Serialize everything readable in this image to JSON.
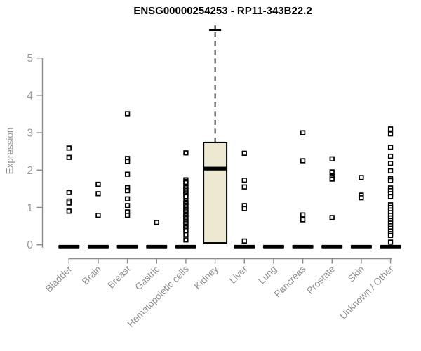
{
  "chart_data": {
    "type": "box",
    "title": "ENSG00000254253 - RP11-343B22.2",
    "ylabel": "Expression",
    "xlabel": "",
    "ylim": [
      0,
      5.8
    ],
    "yticks": [
      0,
      1,
      2,
      3,
      4,
      5
    ],
    "grid": false,
    "legend": "none",
    "marker_style": "open-square",
    "categories": [
      "Bladder",
      "Brain",
      "Breast",
      "Gastric",
      "Hematopoietic cells",
      "Kidney",
      "Liver",
      "Lung",
      "Pancreas",
      "Prostate",
      "Skin",
      "Unknown / Other"
    ],
    "groups": [
      {
        "category": "Bladder",
        "median": 0,
        "outliers": [
          2.59,
          2.34,
          1.4,
          1.17,
          1.12,
          0.9
        ]
      },
      {
        "category": "Brain",
        "median": 0,
        "outliers": [
          1.62,
          1.37,
          0.79
        ]
      },
      {
        "category": "Breast",
        "median": 0,
        "outliers": [
          3.51,
          2.31,
          2.23,
          1.89,
          1.53,
          1.45,
          1.23,
          1.05,
          0.88,
          0.79
        ]
      },
      {
        "category": "Gastric",
        "median": 0,
        "outliers": [
          0.6
        ]
      },
      {
        "category": "Hematopoietic cells",
        "median": 0,
        "outliers": [
          2.46,
          1.74,
          1.7,
          1.66,
          1.57,
          1.53,
          1.49,
          1.45,
          1.41,
          1.37,
          1.33,
          1.29,
          1.18,
          1.14,
          1.1,
          1.06,
          1.02,
          0.98,
          0.94,
          0.9,
          0.86,
          0.82,
          0.78,
          0.74,
          0.7,
          0.66,
          0.62,
          0.58,
          0.54,
          0.5,
          0.46,
          0.42,
          0.38,
          0.27,
          0.13
        ]
      },
      {
        "category": "Kidney",
        "box": {
          "q1": 0.05,
          "median": 2.04,
          "q3": 2.74,
          "whisker_high": 5.75,
          "whisker_low": 0.05
        },
        "outliers": []
      },
      {
        "category": "Liver",
        "median": 0,
        "outliers": [
          2.45,
          1.73,
          1.55,
          1.05,
          0.97,
          0.1
        ]
      },
      {
        "category": "Lung",
        "median": 0,
        "outliers": []
      },
      {
        "category": "Pancreas",
        "median": 0,
        "outliers": [
          3.0,
          2.25,
          0.8,
          0.67
        ]
      },
      {
        "category": "Prostate",
        "median": 0,
        "outliers": [
          2.3,
          1.95,
          1.82,
          1.76,
          0.73
        ]
      },
      {
        "category": "Skin",
        "median": 0,
        "outliers": [
          1.8,
          1.33,
          1.26
        ]
      },
      {
        "category": "Unknown / Other",
        "median": 0,
        "outliers": [
          3.1,
          2.97,
          2.61,
          2.37,
          2.18,
          1.98,
          1.77,
          1.72,
          1.52,
          1.45,
          1.37,
          1.29,
          1.07,
          1.0,
          0.93,
          0.86,
          0.79,
          0.72,
          0.65,
          0.58,
          0.51,
          0.44,
          0.37,
          0.3,
          0.25,
          0.07
        ]
      }
    ],
    "colors": {
      "box_fill": "#EDE8D1",
      "line": "#000000",
      "axis": "#8C8C8C",
      "tick_label": "#9A9A9A",
      "category_label": "#8C8C8C",
      "title": "#000000",
      "background": "#FFFFFF"
    }
  }
}
